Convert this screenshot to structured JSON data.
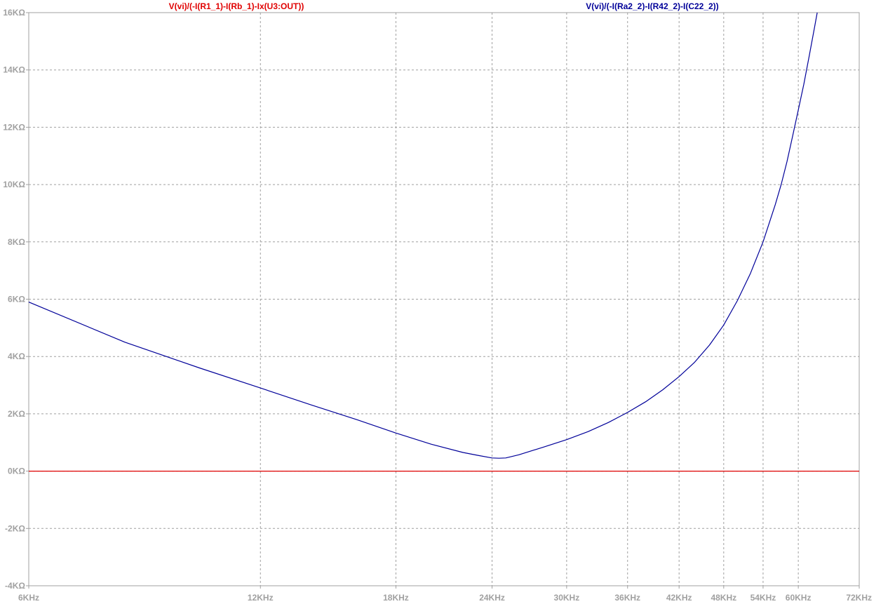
{
  "colors": {
    "background": "#ffffff",
    "grid": "#a0a0a0",
    "axis": "#a0a0a0",
    "tick_text": "#a0a0a0",
    "series_red": "#e00000",
    "series_blue": "#000099"
  },
  "chart_data": {
    "type": "line",
    "x_scale": "log",
    "xlim": [
      6000,
      72000
    ],
    "ylim": [
      -4000,
      16000
    ],
    "grid": true,
    "grid_style": "dashed",
    "x_ticks": [
      {
        "value": 6000,
        "label": "6KHz"
      },
      {
        "value": 12000,
        "label": "12KHz"
      },
      {
        "value": 18000,
        "label": "18KHz"
      },
      {
        "value": 24000,
        "label": "24KHz"
      },
      {
        "value": 30000,
        "label": "30KHz"
      },
      {
        "value": 36000,
        "label": "36KHz"
      },
      {
        "value": 42000,
        "label": "42KHz"
      },
      {
        "value": 48000,
        "label": "48KHz"
      },
      {
        "value": 54000,
        "label": "54KHz"
      },
      {
        "value": 60000,
        "label": "60KHz"
      },
      {
        "value": 72000,
        "label": "72KHz"
      }
    ],
    "y_ticks": [
      {
        "value": 16000,
        "label": "16KΩ"
      },
      {
        "value": 14000,
        "label": "14KΩ"
      },
      {
        "value": 12000,
        "label": "12KΩ"
      },
      {
        "value": 10000,
        "label": "10KΩ"
      },
      {
        "value": 8000,
        "label": "8KΩ"
      },
      {
        "value": 6000,
        "label": "6KΩ"
      },
      {
        "value": 4000,
        "label": "4KΩ"
      },
      {
        "value": 2000,
        "label": "2KΩ"
      },
      {
        "value": 0,
        "label": "0KΩ"
      },
      {
        "value": -2000,
        "label": "-2KΩ"
      },
      {
        "value": -4000,
        "label": "-4KΩ"
      }
    ],
    "series": [
      {
        "name": "V(vi)/(-I(R1_1)-I(Rb_1)-Ix(U3:OUT))",
        "color": "#e00000",
        "x": [
          6000,
          72000
        ],
        "y": [
          0,
          0
        ]
      },
      {
        "name": "V(vi)/(-I(Ra2_2)-I(R42_2)-I(C22_2))",
        "color": "#000099",
        "x": [
          6000,
          8000,
          10000,
          12000,
          14000,
          16000,
          18000,
          20000,
          22000,
          23000,
          24000,
          24500,
          25000,
          26000,
          28000,
          30000,
          32000,
          34000,
          36000,
          38000,
          40000,
          42000,
          44000,
          46000,
          48000,
          50000,
          52000,
          54000,
          56000,
          57000,
          58000,
          59000,
          60000,
          61000,
          62000,
          63000,
          63500
        ],
        "y": [
          5900,
          4500,
          3600,
          2900,
          2300,
          1800,
          1330,
          940,
          650,
          550,
          460,
          450,
          460,
          570,
          840,
          1100,
          1380,
          1700,
          2050,
          2420,
          2840,
          3300,
          3800,
          4400,
          5100,
          5950,
          6900,
          8000,
          9300,
          10000,
          10800,
          11700,
          12600,
          13500,
          14500,
          15500,
          16000
        ]
      }
    ]
  }
}
